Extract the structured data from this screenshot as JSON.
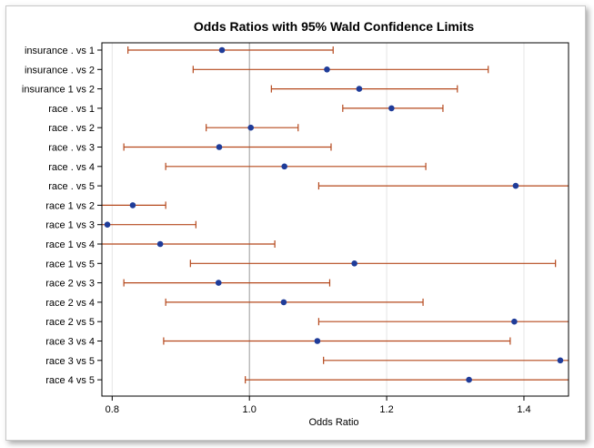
{
  "chart_data": {
    "type": "scatter",
    "title": "Odds Ratios with 95% Wald Confidence Limits",
    "xlabel": "Odds Ratio",
    "ylabel": "",
    "xlim": [
      0.785,
      1.465
    ],
    "xticks": [
      "0.8",
      "1.0",
      "1.2",
      "1.4"
    ],
    "xtick_values": [
      0.8,
      1.0,
      1.2,
      1.4
    ],
    "reference_line": 1.0,
    "colors": {
      "point": "#1f3c99",
      "interval": "#b5481c",
      "reference": "#a0a0a0",
      "grid": "#e6e6e6",
      "axis": "#000000"
    },
    "categories": [
      "insurance . vs 1",
      "insurance . vs 2",
      "insurance 1 vs 2",
      "race . vs 1",
      "race . vs 2",
      "race . vs 3",
      "race . vs 4",
      "race . vs 5",
      "race 1 vs 2",
      "race 1 vs 3",
      "race 1 vs 4",
      "race 1 vs 5",
      "race 2 vs 3",
      "race 2 vs 4",
      "race 2 vs 5",
      "race 3 vs 4",
      "race 3 vs 5",
      "race 4 vs 5"
    ],
    "estimates": [
      0.96,
      1.113,
      1.16,
      1.207,
      1.002,
      0.956,
      1.051,
      1.388,
      0.83,
      0.793,
      0.87,
      1.153,
      0.955,
      1.05,
      1.386,
      1.099,
      1.453,
      1.32
    ],
    "lower": [
      0.823,
      0.918,
      1.032,
      1.136,
      0.937,
      0.817,
      0.878,
      1.101,
      0.785,
      0.785,
      0.785,
      0.914,
      0.817,
      0.878,
      1.101,
      0.875,
      1.108,
      0.994
    ],
    "upper": [
      1.122,
      1.348,
      1.303,
      1.282,
      1.071,
      1.119,
      1.257,
      1.465,
      0.878,
      0.922,
      1.037,
      1.446,
      1.117,
      1.253,
      1.465,
      1.38,
      1.465,
      1.465
    ]
  }
}
